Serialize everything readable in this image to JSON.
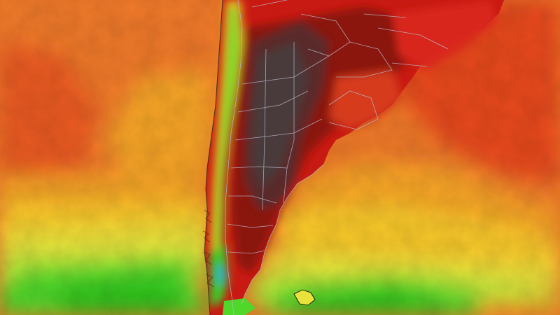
{
  "map": {
    "type": "temperature-heat-map",
    "region": "southern-south-america",
    "palette": {
      "ocean_warm": "#f07a2a",
      "ocean_hot": "#e84a1c",
      "ocean_mild": "#f6a428",
      "ocean_cool": "#f8c82a",
      "cold_yellow": "#e9e23a",
      "cold_lime": "#b6e63a",
      "cold_green": "#4fd82a",
      "cold_deep_green": "#2fc21e",
      "land_hot": "#c81a12",
      "land_very_hot": "#8a1410",
      "land_extreme": "#5a2a2a",
      "land_dark": "#4a3a3a",
      "borders": "#b8b8c8"
    },
    "layers": [
      "ocean-temperature",
      "land-temperature",
      "country-borders",
      "province-borders"
    ],
    "labels": []
  }
}
